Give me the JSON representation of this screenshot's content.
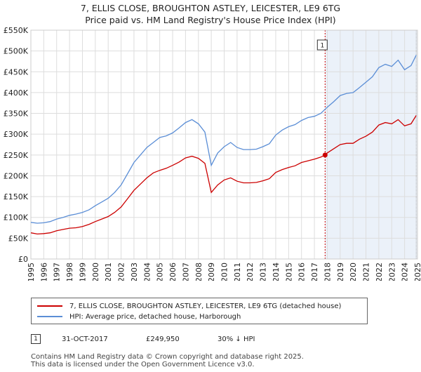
{
  "title_line1": "7, ELLIS CLOSE, BROUGHTON ASTLEY, LEICESTER, LE9 6TG",
  "title_line2": "Price paid vs. HM Land Registry's House Price Index (HPI)",
  "chart_data": {
    "type": "line",
    "xlim": [
      1995,
      2025
    ],
    "ylim": [
      0,
      550000
    ],
    "y_ticks": [
      0,
      50000,
      100000,
      150000,
      200000,
      250000,
      300000,
      350000,
      400000,
      450000,
      500000,
      550000
    ],
    "y_tick_labels": [
      "£0",
      "£50K",
      "£100K",
      "£150K",
      "£200K",
      "£250K",
      "£300K",
      "£350K",
      "£400K",
      "£450K",
      "£500K",
      "£550K"
    ],
    "x_ticks": [
      1995,
      1996,
      1997,
      1998,
      1999,
      2000,
      2001,
      2002,
      2003,
      2004,
      2005,
      2006,
      2007,
      2008,
      2009,
      2010,
      2011,
      2012,
      2013,
      2014,
      2015,
      2016,
      2017,
      2018,
      2019,
      2020,
      2021,
      2022,
      2023,
      2024,
      2025
    ],
    "x_tick_labels": [
      "1995",
      "1996",
      "1997",
      "1998",
      "1999",
      "2000",
      "2001",
      "2002",
      "2003",
      "2004",
      "2005",
      "2006",
      "2007",
      "2008",
      "2009",
      "2010",
      "2011",
      "2012",
      "2013",
      "2014",
      "2015",
      "2016",
      "2017",
      "2018",
      "2019",
      "2020",
      "2021",
      "2022",
      "2023",
      "2024",
      "2025"
    ],
    "grid": true,
    "series": [
      {
        "name": "7, ELLIS CLOSE, BROUGHTON ASTLEY, LEICESTER, LE9 6TG (detached house)",
        "color": "#cc0000",
        "x": [
          1995.0,
          1995.5,
          1996.0,
          1996.5,
          1997.0,
          1997.5,
          1998.0,
          1998.5,
          1999.0,
          1999.5,
          2000.0,
          2000.5,
          2001.0,
          2001.5,
          2002.0,
          2002.5,
          2003.0,
          2003.5,
          2004.0,
          2004.5,
          2005.0,
          2005.5,
          2006.0,
          2006.5,
          2007.0,
          2007.5,
          2008.0,
          2008.5,
          2009.0,
          2009.5,
          2010.0,
          2010.5,
          2011.0,
          2011.5,
          2012.0,
          2012.5,
          2013.0,
          2013.5,
          2014.0,
          2014.5,
          2015.0,
          2015.5,
          2016.0,
          2016.5,
          2017.0,
          2017.5,
          2017.83,
          2018.0,
          2018.5,
          2019.0,
          2019.5,
          2020.0,
          2020.5,
          2021.0,
          2021.5,
          2022.0,
          2022.5,
          2023.0,
          2023.5,
          2024.0,
          2024.5,
          2024.9
        ],
        "y": [
          63000,
          60000,
          61000,
          63000,
          68000,
          71000,
          74000,
          75000,
          78000,
          83000,
          90000,
          96000,
          102000,
          112000,
          125000,
          145000,
          165000,
          180000,
          195000,
          207000,
          213000,
          218000,
          225000,
          233000,
          243000,
          247000,
          242000,
          230000,
          160000,
          178000,
          190000,
          195000,
          187000,
          183000,
          183000,
          184000,
          188000,
          193000,
          208000,
          215000,
          220000,
          224000,
          232000,
          236000,
          240000,
          245000,
          249950,
          255000,
          265000,
          275000,
          278000,
          278000,
          288000,
          295000,
          305000,
          322000,
          328000,
          325000,
          335000,
          320000,
          325000,
          345000
        ]
      },
      {
        "name": "HPI: Average price, detached house, Harborough",
        "color": "#5b8ed6",
        "x": [
          1995.0,
          1995.5,
          1996.0,
          1996.5,
          1997.0,
          1997.5,
          1998.0,
          1998.5,
          1999.0,
          1999.5,
          2000.0,
          2000.5,
          2001.0,
          2001.5,
          2002.0,
          2002.5,
          2003.0,
          2003.5,
          2004.0,
          2004.5,
          2005.0,
          2005.5,
          2006.0,
          2006.5,
          2007.0,
          2007.5,
          2008.0,
          2008.5,
          2009.0,
          2009.5,
          2010.0,
          2010.5,
          2011.0,
          2011.5,
          2012.0,
          2012.5,
          2013.0,
          2013.5,
          2014.0,
          2014.5,
          2015.0,
          2015.5,
          2016.0,
          2016.5,
          2017.0,
          2017.5,
          2018.0,
          2018.5,
          2019.0,
          2019.5,
          2020.0,
          2020.5,
          2021.0,
          2021.5,
          2022.0,
          2022.5,
          2023.0,
          2023.5,
          2024.0,
          2024.5,
          2024.9
        ],
        "y": [
          88000,
          86000,
          87000,
          90000,
          96000,
          100000,
          105000,
          108000,
          112000,
          118000,
          128000,
          137000,
          146000,
          160000,
          178000,
          205000,
          232000,
          250000,
          268000,
          280000,
          292000,
          296000,
          303000,
          315000,
          328000,
          335000,
          325000,
          305000,
          225000,
          255000,
          270000,
          280000,
          268000,
          263000,
          263000,
          264000,
          270000,
          277000,
          298000,
          310000,
          318000,
          323000,
          333000,
          340000,
          343000,
          350000,
          365000,
          378000,
          393000,
          398000,
          400000,
          412000,
          425000,
          438000,
          460000,
          468000,
          463000,
          478000,
          455000,
          465000,
          490000
        ]
      }
    ],
    "annotations": [
      {
        "label": "1",
        "x": 2017.83,
        "y": 249950
      }
    ]
  },
  "legend": {
    "red_label": "7, ELLIS CLOSE, BROUGHTON ASTLEY, LEICESTER, LE9 6TG (detached house)",
    "blue_label": "HPI: Average price, detached house, Harborough"
  },
  "transaction": {
    "badge": "1",
    "date": "31-OCT-2017",
    "price": "£249,950",
    "hpi_diff": "30% ↓ HPI"
  },
  "footer_line1": "Contains HM Land Registry data © Crown copyright and database right 2025.",
  "footer_line2": "This data is licensed under the Open Government Licence v3.0."
}
